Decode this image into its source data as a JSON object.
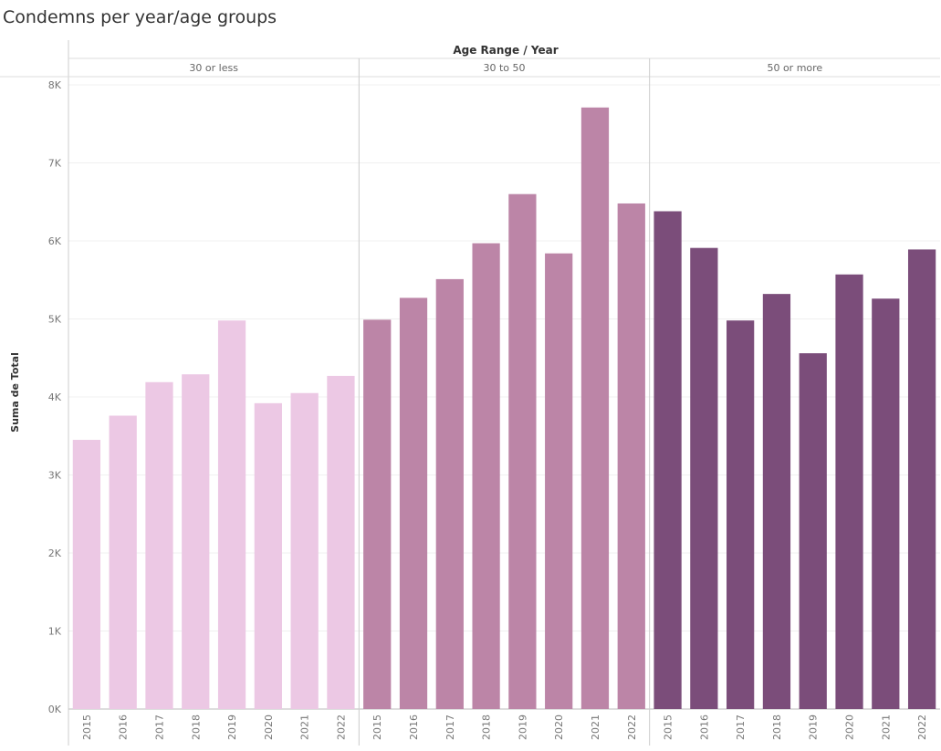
{
  "title": "Condemns per year/age groups",
  "chart_data": {
    "type": "bar",
    "header": "Age Range  /  Year",
    "ylabel": "Suma de Total",
    "ylim": [
      0,
      8000
    ],
    "yticks": [
      0,
      1000,
      2000,
      3000,
      4000,
      5000,
      6000,
      7000,
      8000
    ],
    "ytick_labels": [
      "0K",
      "1K",
      "2K",
      "3K",
      "4K",
      "5K",
      "6K",
      "7K",
      "8K"
    ],
    "grid": true,
    "legend": "none",
    "groups": [
      {
        "name": "30 or less",
        "color": "#ecc8e4",
        "categories": [
          "2015",
          "2016",
          "2017",
          "2018",
          "2019",
          "2020",
          "2021",
          "2022"
        ],
        "values": [
          3450,
          3760,
          4190,
          4290,
          4980,
          3920,
          4050,
          4270
        ]
      },
      {
        "name": "30 to 50",
        "color": "#bc85a7",
        "categories": [
          "2015",
          "2016",
          "2017",
          "2018",
          "2019",
          "2020",
          "2021",
          "2022"
        ],
        "values": [
          4990,
          5270,
          5510,
          5970,
          6600,
          5840,
          7710,
          6480
        ]
      },
      {
        "name": "50 or more",
        "color": "#7b4d7a",
        "categories": [
          "2015",
          "2016",
          "2017",
          "2018",
          "2019",
          "2020",
          "2021",
          "2022"
        ],
        "values": [
          6380,
          5910,
          4980,
          5320,
          4560,
          5570,
          5260,
          5890
        ]
      }
    ]
  }
}
